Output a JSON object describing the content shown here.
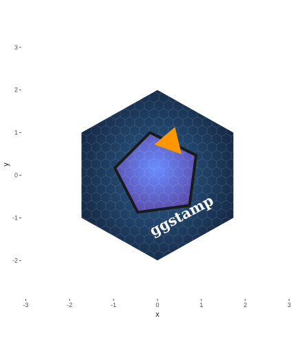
{
  "chart_data": {
    "type": "scatter",
    "title": "",
    "xlabel": "x",
    "ylabel": "y",
    "xlim": [
      -3.1,
      3.1
    ],
    "ylim": [
      -2.9,
      3.4
    ],
    "x_ticks": [
      -3,
      -2,
      -1,
      0,
      1,
      2,
      3
    ],
    "y_ticks": [
      -2,
      -1,
      0,
      1,
      2,
      3
    ],
    "x_tick_labels": [
      "-3",
      "-2",
      "-1",
      "0",
      "1",
      "2",
      "3"
    ],
    "y_tick_labels": [
      "-2",
      "-1",
      "0",
      "1",
      "2",
      "3"
    ],
    "grid": false,
    "shapes": [
      {
        "kind": "hexagon",
        "fill": "#1d3557",
        "points": [
          [
            0,
            2.0
          ],
          [
            1.73,
            1.0
          ],
          [
            1.73,
            -1.0
          ],
          [
            0,
            -2.0
          ],
          [
            -1.73,
            -1.0
          ],
          [
            -1.73,
            1.0
          ]
        ]
      },
      {
        "kind": "pentagon",
        "fill": "#6a5acd",
        "stroke": "#1a1a1a",
        "points": [
          [
            -0.17,
            1.0
          ],
          [
            0.88,
            0.47
          ],
          [
            0.73,
            -0.71
          ],
          [
            -0.45,
            -0.87
          ],
          [
            -0.97,
            0.17
          ]
        ]
      },
      {
        "kind": "triangle",
        "fill": "#ff9800",
        "points": [
          [
            0.4,
            1.13
          ],
          [
            0.55,
            0.49
          ],
          [
            -0.07,
            0.72
          ]
        ]
      }
    ],
    "annotation": {
      "text": "ggstamp",
      "x": 0.6,
      "y": -1.05,
      "angle": -28,
      "color": "#ffffff"
    }
  }
}
